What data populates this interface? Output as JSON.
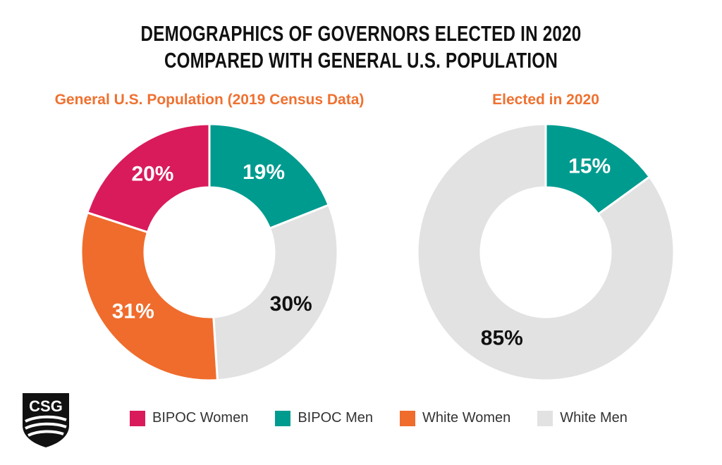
{
  "title_line1": "DEMOGRAPHICS OF GOVERNORS ELECTED IN 2020",
  "title_line2": "COMPARED WITH GENERAL U.S. POPULATION",
  "logo_text": "CSG",
  "colors": {
    "BIPOC Women": "#d91b5b",
    "BIPOC Men": "#009b8f",
    "White Women": "#ef6c2c",
    "White Men": "#e2e2e3",
    "subtitle": "#ef7130"
  },
  "legend": [
    "BIPOC Women",
    "BIPOC Men",
    "White Women",
    "White Men"
  ],
  "chart_data": [
    {
      "type": "pie",
      "title": "General U.S. Population (2019 Census Data)",
      "slices": [
        {
          "name": "BIPOC Men",
          "value": 19,
          "label": "19%"
        },
        {
          "name": "White Men",
          "value": 30,
          "label": "30%"
        },
        {
          "name": "White Women",
          "value": 31,
          "label": "31%"
        },
        {
          "name": "BIPOC Women",
          "value": 20,
          "label": "20%"
        }
      ]
    },
    {
      "type": "pie",
      "title": "Elected in 2020",
      "slices": [
        {
          "name": "BIPOC Men",
          "value": 15,
          "label": "15%"
        },
        {
          "name": "White Men",
          "value": 85,
          "label": "85%"
        }
      ]
    }
  ]
}
